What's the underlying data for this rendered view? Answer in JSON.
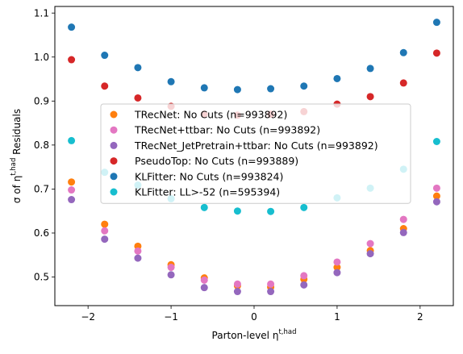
{
  "chart_data": {
    "type": "scatter",
    "xlabel_base": "Parton-level η",
    "xlabel_sup": "t,had",
    "ylabel_prefix": "σ of η",
    "ylabel_sup": "t,had",
    "ylabel_suffix": " Residuals",
    "xlim": [
      -2.4,
      2.4
    ],
    "ylim": [
      0.435,
      1.115
    ],
    "x_ticks": [
      -2,
      -1,
      0,
      1,
      2
    ],
    "x_tick_labels": [
      "−2",
      "−1",
      "0",
      "1",
      "2"
    ],
    "y_ticks": [
      0.5,
      0.6,
      0.7,
      0.8,
      0.9,
      1.0,
      1.1
    ],
    "y_tick_labels": [
      "0.5",
      "0.6",
      "0.7",
      "0.8",
      "0.9",
      "1.0",
      "1.1"
    ],
    "grid": false,
    "legend_position": "center",
    "x": [
      -2.2,
      -1.8,
      -1.4,
      -1.0,
      -0.6,
      -0.2,
      0.2,
      0.6,
      1.0,
      1.4,
      1.8,
      2.2
    ],
    "series": [
      {
        "name": "TRecNet: No Cuts (n=993892)",
        "color": "#ff7f0e",
        "values": [
          0.716,
          0.62,
          0.57,
          0.528,
          0.498,
          0.48,
          0.477,
          0.495,
          0.522,
          0.56,
          0.61,
          0.684
        ]
      },
      {
        "name": "TRecNet+ttbar: No Cuts (n=993892)",
        "color": "#e377c2",
        "values": [
          0.698,
          0.605,
          0.559,
          0.522,
          0.493,
          0.484,
          0.484,
          0.503,
          0.534,
          0.576,
          0.631,
          0.702
        ]
      },
      {
        "name": "TRecNet_JetPretrain+ttbar: No Cuts (n=993892)",
        "color": "#9467bd",
        "values": [
          0.676,
          0.586,
          0.543,
          0.505,
          0.476,
          0.467,
          0.467,
          0.482,
          0.51,
          0.553,
          0.601,
          0.671
        ]
      },
      {
        "name": "PseudoTop: No Cuts (n=993889)",
        "color": "#d62728",
        "values": [
          0.994,
          0.934,
          0.907,
          0.888,
          0.87,
          0.868,
          0.87,
          0.876,
          0.893,
          0.91,
          0.941,
          1.009
        ]
      },
      {
        "name": "KLFitter: No Cuts (n=993824)",
        "color": "#1f77b4",
        "values": [
          1.068,
          1.004,
          0.976,
          0.944,
          0.93,
          0.926,
          0.928,
          0.934,
          0.951,
          0.974,
          1.01,
          1.079
        ]
      },
      {
        "name": "KLFitter: LL>-52 (n=595394)",
        "color": "#17becf",
        "values": [
          0.81,
          0.738,
          0.709,
          0.678,
          0.658,
          0.65,
          0.649,
          0.658,
          0.68,
          0.702,
          0.745,
          0.808
        ]
      }
    ]
  }
}
